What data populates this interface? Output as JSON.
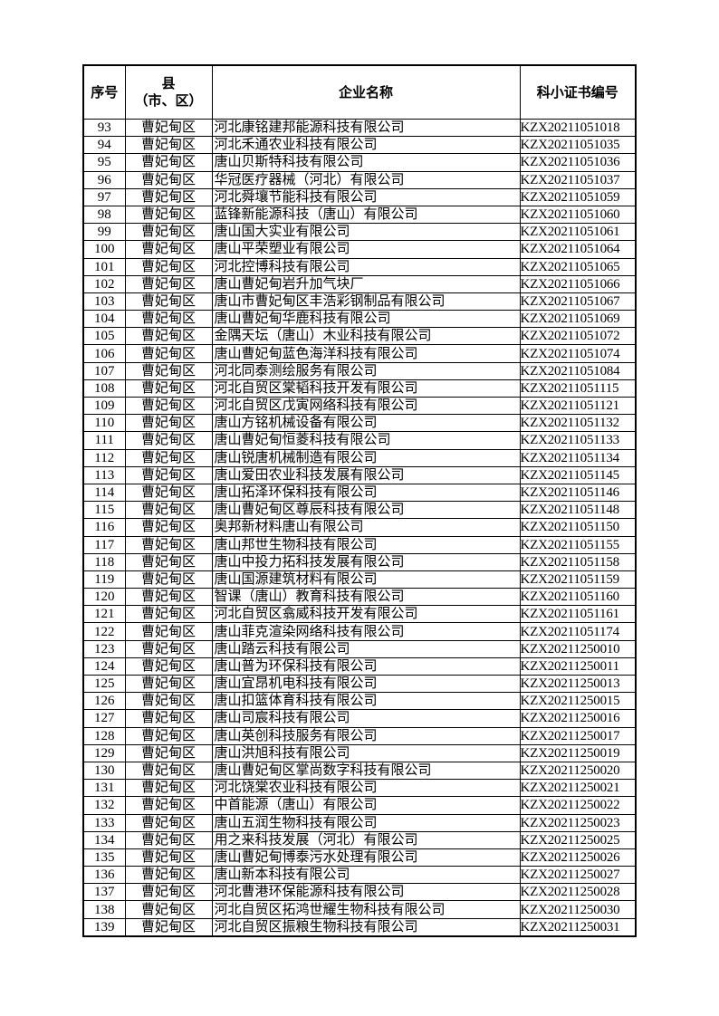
{
  "table": {
    "headers": {
      "index": "序号",
      "county_line1": "县",
      "county_line2": "（市、区）",
      "company": "企业名称",
      "cert": "科小证书编号"
    },
    "rows": [
      [
        "93",
        "曹妃甸区",
        "河北康铭建邦能源科技有限公司",
        "KZX20211051018"
      ],
      [
        "94",
        "曹妃甸区",
        "河北禾通农业科技有限公司",
        "KZX20211051035"
      ],
      [
        "95",
        "曹妃甸区",
        "唐山贝斯特科技有限公司",
        "KZX20211051036"
      ],
      [
        "96",
        "曹妃甸区",
        "华冠医疗器械（河北）有限公司",
        "KZX20211051037"
      ],
      [
        "97",
        "曹妃甸区",
        "河北舜壤节能科技有限公司",
        "KZX20211051059"
      ],
      [
        "98",
        "曹妃甸区",
        "蓝锋新能源科技（唐山）有限公司",
        "KZX20211051060"
      ],
      [
        "99",
        "曹妃甸区",
        "唐山国大实业有限公司",
        "KZX20211051061"
      ],
      [
        "100",
        "曹妃甸区",
        "唐山平荣塑业有限公司",
        "KZX20211051064"
      ],
      [
        "101",
        "曹妃甸区",
        "河北控博科技有限公司",
        "KZX20211051065"
      ],
      [
        "102",
        "曹妃甸区",
        "唐山曹妃甸岩升加气块厂",
        "KZX20211051066"
      ],
      [
        "103",
        "曹妃甸区",
        "唐山市曹妃甸区丰浩彩钢制品有限公司",
        "KZX20211051067"
      ],
      [
        "104",
        "曹妃甸区",
        "唐山曹妃甸华鹿科技有限公司",
        "KZX20211051069"
      ],
      [
        "105",
        "曹妃甸区",
        "金隅天坛（唐山）木业科技有限公司",
        "KZX20211051072"
      ],
      [
        "106",
        "曹妃甸区",
        "唐山曹妃甸蓝色海洋科技有限公司",
        "KZX20211051074"
      ],
      [
        "107",
        "曹妃甸区",
        "河北同泰测绘服务有限公司",
        "KZX20211051084"
      ],
      [
        "108",
        "曹妃甸区",
        "河北自贸区棠韬科技开发有限公司",
        "KZX20211051115"
      ],
      [
        "109",
        "曹妃甸区",
        "河北自贸区戊寅网络科技有限公司",
        "KZX20211051121"
      ],
      [
        "110",
        "曹妃甸区",
        "唐山方铭机械设备有限公司",
        "KZX20211051132"
      ],
      [
        "111",
        "曹妃甸区",
        "唐山曹妃甸恒菱科技有限公司",
        "KZX20211051133"
      ],
      [
        "112",
        "曹妃甸区",
        "唐山锐唐机械制造有限公司",
        "KZX20211051134"
      ],
      [
        "113",
        "曹妃甸区",
        "唐山爱田农业科技发展有限公司",
        "KZX20211051145"
      ],
      [
        "114",
        "曹妃甸区",
        "唐山拓泽环保科技有限公司",
        "KZX20211051146"
      ],
      [
        "115",
        "曹妃甸区",
        "唐山曹妃甸区尊辰科技有限公司",
        "KZX20211051148"
      ],
      [
        "116",
        "曹妃甸区",
        "奥邦新材料唐山有限公司",
        "KZX20211051150"
      ],
      [
        "117",
        "曹妃甸区",
        "唐山邦世生物科技有限公司",
        "KZX20211051155"
      ],
      [
        "118",
        "曹妃甸区",
        "唐山中投力拓科技发展有限公司",
        "KZX20211051158"
      ],
      [
        "119",
        "曹妃甸区",
        "唐山国源建筑材料有限公司",
        "KZX20211051159"
      ],
      [
        "120",
        "曹妃甸区",
        "智课（唐山）教育科技有限公司",
        "KZX20211051160"
      ],
      [
        "121",
        "曹妃甸区",
        "河北自贸区翕威科技开发有限公司",
        "KZX20211051161"
      ],
      [
        "122",
        "曹妃甸区",
        "唐山菲克渲染网络科技有限公司",
        "KZX20211051174"
      ],
      [
        "123",
        "曹妃甸区",
        "唐山踏云科技有限公司",
        "KZX20211250010"
      ],
      [
        "124",
        "曹妃甸区",
        "唐山普为环保科技有限公司",
        "KZX20211250011"
      ],
      [
        "125",
        "曹妃甸区",
        "唐山宜昂机电科技有限公司",
        "KZX20211250013"
      ],
      [
        "126",
        "曹妃甸区",
        "唐山扣篮体育科技有限公司",
        "KZX20211250015"
      ],
      [
        "127",
        "曹妃甸区",
        "唐山司宸科技有限公司",
        "KZX20211250016"
      ],
      [
        "128",
        "曹妃甸区",
        "唐山英创科技服务有限公司",
        "KZX20211250017"
      ],
      [
        "129",
        "曹妃甸区",
        "唐山洪旭科技有限公司",
        "KZX20211250019"
      ],
      [
        "130",
        "曹妃甸区",
        "唐山曹妃甸区掌尚数字科技有限公司",
        "KZX20211250020"
      ],
      [
        "131",
        "曹妃甸区",
        "河北饶棠农业科技有限公司",
        "KZX20211250021"
      ],
      [
        "132",
        "曹妃甸区",
        "中首能源（唐山）有限公司",
        "KZX20211250022"
      ],
      [
        "133",
        "曹妃甸区",
        "唐山五润生物科技有限公司",
        "KZX20211250023"
      ],
      [
        "134",
        "曹妃甸区",
        "用之来科技发展（河北）有限公司",
        "KZX20211250025"
      ],
      [
        "135",
        "曹妃甸区",
        "唐山曹妃甸博泰污水处理有限公司",
        "KZX20211250026"
      ],
      [
        "136",
        "曹妃甸区",
        "唐山新本科技有限公司",
        "KZX20211250027"
      ],
      [
        "137",
        "曹妃甸区",
        "河北曹港环保能源科技有限公司",
        "KZX20211250028"
      ],
      [
        "138",
        "曹妃甸区",
        "河北自贸区拓鸿世耀生物科技有限公司",
        "KZX20211250030"
      ],
      [
        "139",
        "曹妃甸区",
        "河北自贸区振粮生物科技有限公司",
        "KZX20211250031"
      ]
    ]
  }
}
